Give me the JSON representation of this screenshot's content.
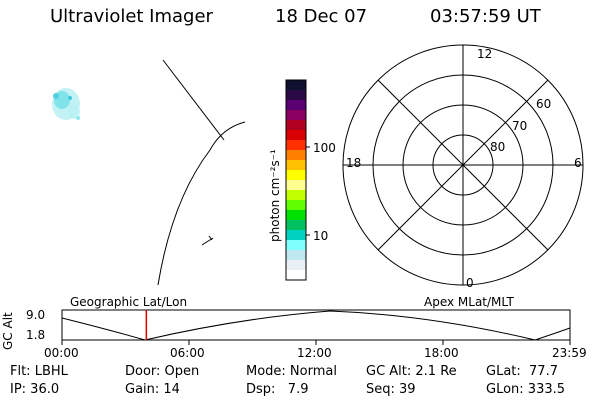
{
  "header": {
    "instrument": "Ultraviolet Imager",
    "date": "18 Dec 07",
    "time": "03:57:59 UT"
  },
  "colorbar": {
    "label": "photon cm⁻²s⁻¹",
    "tick_100": "100",
    "tick_10": "10",
    "colors": [
      "#101030",
      "#2a0a45",
      "#5a0070",
      "#8a0060",
      "#b00020",
      "#d80000",
      "#ff3000",
      "#ff8000",
      "#ffc000",
      "#ffff00",
      "#ffff90",
      "#c0ff00",
      "#60ff00",
      "#00e000",
      "#00c060",
      "#00d0c0",
      "#80ffff",
      "#c0e8f0",
      "#e8f0f4",
      "#ffffff"
    ]
  },
  "polar": {
    "mlt_top": "12",
    "mlt_left": "18",
    "mlt_right": "6",
    "mlt_bottom": "0",
    "lat_60": "60",
    "lat_70": "70",
    "lat_80": "80"
  },
  "altitude_panel": {
    "axis_label": "GC Alt",
    "ymax": "9.0",
    "ymin": "1.8",
    "left_caption": "Geographic Lat/Lon",
    "right_caption": "Apex MLat/MLT",
    "time_ticks": [
      "00:00",
      "06:00",
      "12:00",
      "18:00",
      "23:59"
    ],
    "current_time_fraction": 0.166
  },
  "info": {
    "flt": "Flt: LBHL",
    "ip": "IP: 36.0",
    "door": "Door: Open",
    "gain": "Gain: 14",
    "mode": "Mode: Normal",
    "dsp": "Dsp:   7.9",
    "gc_alt": "GC Alt: 2.1 Re",
    "seq": "Seq: 39",
    "glat": "GLat:  77.7",
    "glon": "GLon: 333.5"
  }
}
